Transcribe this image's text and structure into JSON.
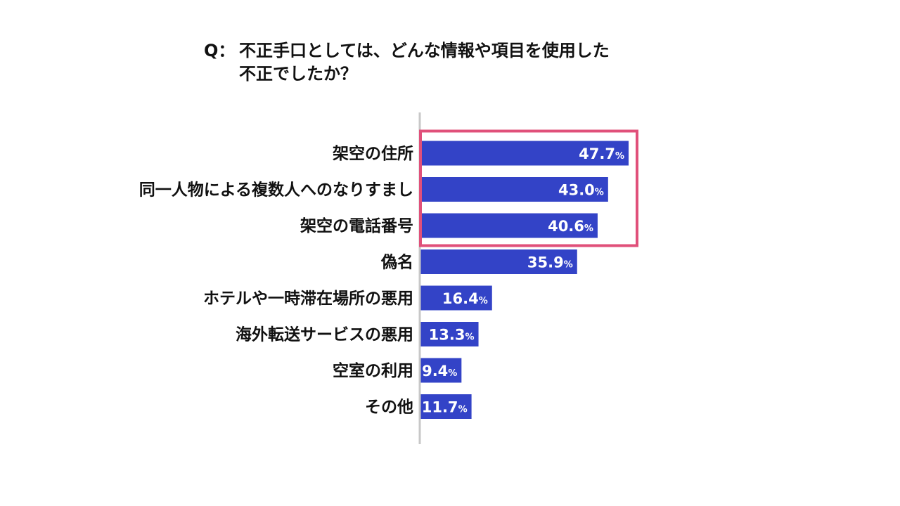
{
  "question": {
    "prefix": "Q：",
    "line1": "不正手口としては、どんな情報や項目を使用した",
    "line2": "不正でしたか？"
  },
  "chart_data": {
    "type": "bar",
    "orientation": "horizontal",
    "title": "",
    "categories": [
      "架空の住所",
      "同一人物による複数人へのなりすまし",
      "架空の電話番号",
      "偽名",
      "ホテルや一時滞在場所の悪用",
      "海外転送サービスの悪用",
      "空室の利用",
      "その他"
    ],
    "values": [
      47.7,
      43.0,
      40.6,
      35.9,
      16.4,
      13.3,
      9.4,
      11.7
    ],
    "value_labels": [
      "47.7",
      "43.0",
      "40.6",
      "35.9",
      "16.4",
      "13.3",
      "9.4",
      "11.7"
    ],
    "unit": "%",
    "xlim": [
      0,
      60
    ],
    "grid": false,
    "legend": "none",
    "highlighted_categories": [
      0,
      1,
      2
    ],
    "colors": {
      "bar": "#3343c7",
      "highlight": "#e0507a",
      "axis": "#c8c8c8"
    }
  }
}
